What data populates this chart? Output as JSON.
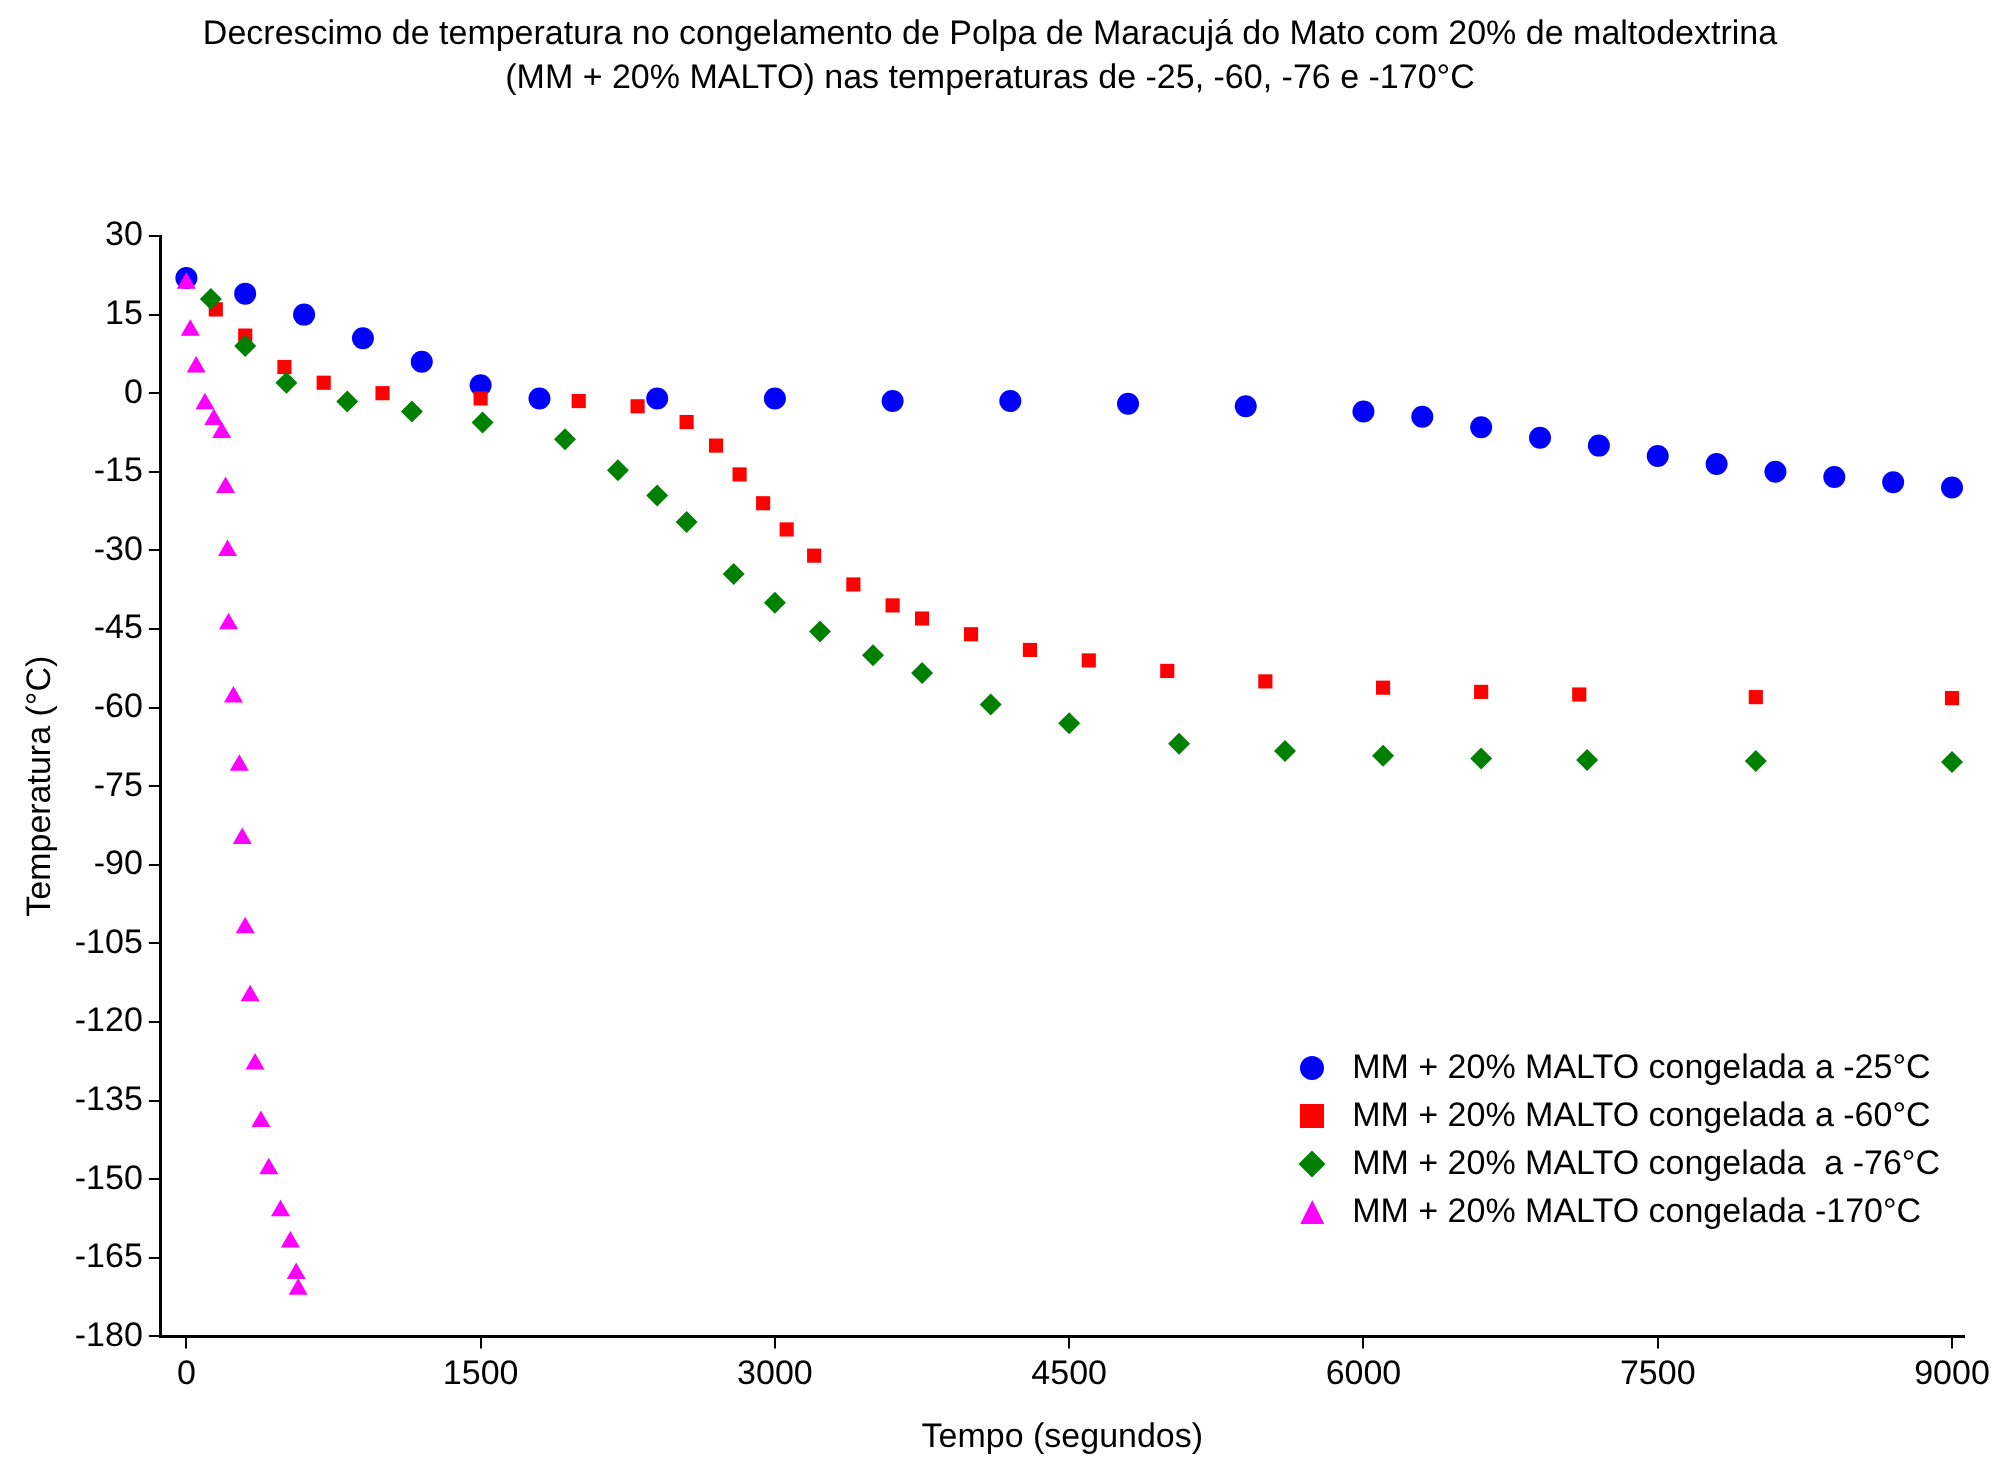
{
  "chart_data": {
    "type": "scatter",
    "title": "Decrescimo de temperatura no congelamento de Polpa de Maracujá do Mato com 20% de maltodextrina\n(MM + 20% MALTO) nas temperaturas de -25, -60, -76 e -170°C",
    "xlabel": "Tempo (segundos)",
    "ylabel": "Temperatura (°C)",
    "xlim": [
      -130,
      9060
    ],
    "xticks": [
      0,
      1500,
      3000,
      4500,
      6000,
      7500,
      9000
    ],
    "ylim": [
      -180,
      30
    ],
    "yticks": [
      30,
      15,
      0,
      -15,
      -30,
      -45,
      -60,
      -75,
      -90,
      -105,
      -120,
      -135,
      -150,
      -165,
      -180
    ],
    "grid": false,
    "legend": "bottom right",
    "series": [
      {
        "name": "MM + 20% MALTO congelada a -25°C",
        "color": "#0000ff",
        "marker": "circle",
        "x": [
          0,
          300,
          600,
          900,
          1200,
          1500,
          1800,
          2400,
          3000,
          3600,
          4200,
          4800,
          5400,
          6000,
          6300,
          6600,
          6900,
          7200,
          7500,
          7800,
          8100,
          8400,
          8700,
          9000
        ],
        "values": [
          22,
          19,
          15,
          10.5,
          6,
          1.5,
          -1,
          -1,
          -1,
          -1.5,
          -1.5,
          -2,
          -2.5,
          -3.5,
          -4.5,
          -6.5,
          -8.5,
          -10,
          -12,
          -13.5,
          -15,
          -16,
          -17,
          -18
        ]
      },
      {
        "name": "MM + 20% MALTO congelada a -60°C",
        "color": "#ff0000",
        "marker": "square",
        "x": [
          150,
          300,
          500,
          700,
          1000,
          1500,
          2000,
          2300,
          2550,
          2700,
          2820,
          2940,
          3060,
          3200,
          3400,
          3600,
          3750,
          4000,
          4300,
          4600,
          5000,
          5500,
          6100,
          6600,
          7100,
          8000,
          9000
        ],
        "values": [
          16,
          11,
          5,
          2,
          0,
          -1,
          -1.5,
          -2.5,
          -5.5,
          -10,
          -15.5,
          -21,
          -26,
          -31,
          -36.5,
          -40.5,
          -43,
          -46,
          -49,
          -51,
          -53,
          -55,
          -56.2,
          -57,
          -57.5,
          -58,
          -58.2
        ]
      },
      {
        "name": "MM + 20% MALTO congelada  a -76°C",
        "color": "#008000",
        "marker": "diamond",
        "x": [
          125,
          300,
          510,
          820,
          1150,
          1510,
          1930,
          2200,
          2400,
          2550,
          2790,
          3000,
          3230,
          3500,
          3750,
          4100,
          4500,
          5060,
          5600,
          6100,
          6600,
          7140,
          8000,
          9000
        ],
        "values": [
          18,
          9,
          2,
          -1.6,
          -3.5,
          -5.6,
          -8.8,
          -14.7,
          -19.5,
          -24.6,
          -34.5,
          -40,
          -45.5,
          -50,
          -53.4,
          -59.4,
          -63,
          -66.9,
          -68.3,
          -69.2,
          -69.7,
          -70,
          -70.2,
          -70.4
        ]
      },
      {
        "name": "MM + 20% MALTO congelada -170°C",
        "color": "#ff00ff",
        "marker": "triangle",
        "x": [
          0,
          20,
          50,
          95,
          140,
          180,
          200,
          210,
          215,
          240,
          270,
          285,
          300,
          325,
          350,
          380,
          420,
          480,
          530,
          560,
          570
        ],
        "values": [
          21,
          12,
          5,
          -2,
          -5,
          -7.5,
          -18,
          -30,
          -44,
          -58,
          -71,
          -85,
          -102,
          -115,
          -128,
          -139,
          -148,
          -156,
          -162,
          -168,
          -171
        ]
      }
    ]
  }
}
